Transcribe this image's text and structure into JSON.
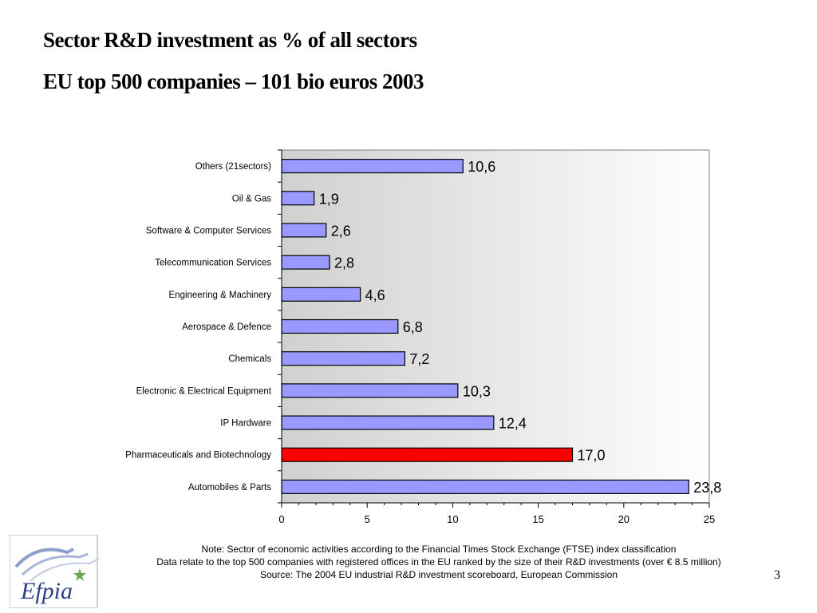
{
  "slide": {
    "title_line1": "Sector R&D investment as % of all sectors",
    "title_line2": "EU top 500 companies – 101 bio euros 2003",
    "notes": [
      "Note: Sector of economic activities according to the Financial Times Stock Exchange (FTSE) index classification",
      "Data relate to the top 500 companies with registered offices in the EU ranked by the size of their R&D investments (over € 8.5 million)",
      "Source: The 2004 EU industrial R&D investment scoreboard, European Commission"
    ],
    "page_number": "3",
    "logo_text": "Efpia"
  },
  "chart_data": {
    "type": "bar",
    "orientation": "horizontal",
    "categories": [
      "Others (21sectors)",
      "Oil & Gas",
      "Software & Computer Services",
      "Telecommunication Services",
      "Engineering & Machinery",
      "Aerospace & Defence",
      "Chemicals",
      "Electronic & Electrical Equipment",
      "IP Hardware",
      "Pharmaceuticals and Biotechnology",
      "Automobiles & Parts"
    ],
    "values": [
      10.6,
      1.9,
      2.6,
      2.8,
      4.6,
      6.8,
      7.2,
      10.3,
      12.4,
      17.0,
      23.8
    ],
    "value_labels": [
      "10,6",
      "1,9",
      "2,6",
      "2,8",
      "4,6",
      "6,8",
      "7,2",
      "10,3",
      "12,4",
      "17,0",
      "23,8"
    ],
    "highlight_category": "Pharmaceuticals and Biotechnology",
    "xlim": [
      0,
      25
    ],
    "x_ticks": [
      0,
      5,
      10,
      15,
      20,
      25
    ],
    "xlabel": "",
    "ylabel": "",
    "colors": {
      "bar": "#9999ff",
      "highlight": "#ff0000",
      "bar_border": "#000000",
      "plot_gradient_start": "#d0d0d0",
      "plot_gradient_end": "#ffffff"
    }
  }
}
